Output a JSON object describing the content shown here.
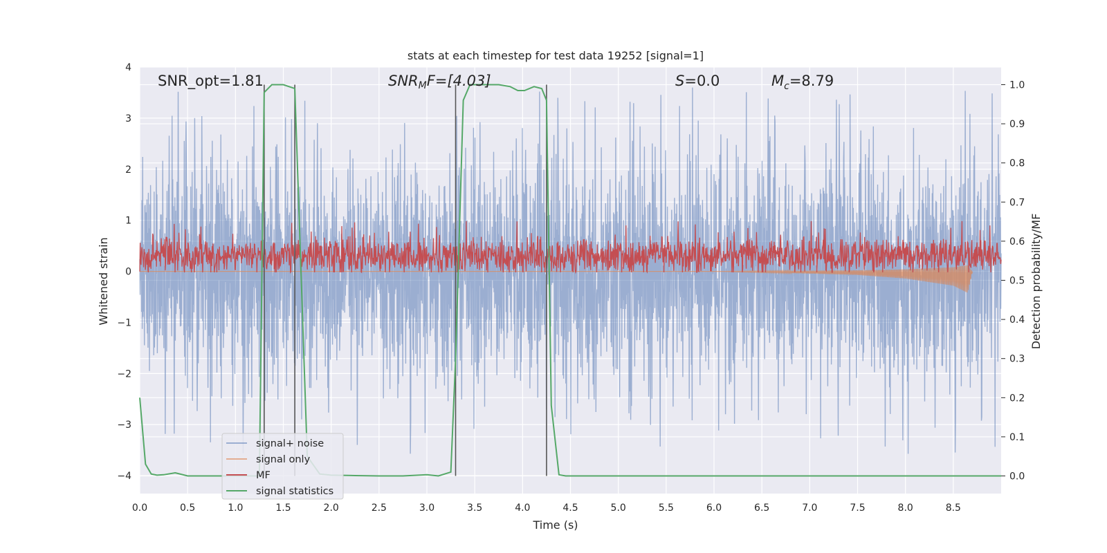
{
  "chart_data": {
    "type": "line",
    "title": "stats at each timestep for test data 19252 [signal=1]",
    "xlabel": "Time (s)",
    "ylabel_left": "Whitened strain",
    "ylabel_right": "Detection probability/MF",
    "xlim": [
      0.0,
      9.0
    ],
    "ylim_left": [
      -4.35,
      4.0
    ],
    "ylim_right": [
      -0.045,
      1.045
    ],
    "x_ticks": [
      "0.0",
      "0.5",
      "1.0",
      "1.5",
      "2.0",
      "2.5",
      "3.0",
      "3.5",
      "4.0",
      "4.5",
      "5.0",
      "5.5",
      "6.0",
      "6.5",
      "7.0",
      "7.5",
      "8.0",
      "8.5"
    ],
    "y_ticks_left": [
      "4",
      "3",
      "2",
      "1",
      "0",
      "−1",
      "−2",
      "−3",
      "−4"
    ],
    "y_ticks_right": [
      "1.0",
      "0.9",
      "0.8",
      "0.7",
      "0.6",
      "0.5",
      "0.4",
      "0.3",
      "0.2",
      "0.1",
      "0.0"
    ],
    "grid": true,
    "legend_position": "lower-left",
    "annotations": {
      "snr_opt": "SNR_opt=1.81",
      "snr_mf_label": "SNR",
      "snr_mf_sub": "M",
      "snr_mf_rest": "F=[4.03]",
      "s_label": "S",
      "s_value": "=0.0",
      "mc_label": "M",
      "mc_sub": "c",
      "mc_value": "=8.79"
    },
    "colors": {
      "signal_noise": "#4c72b0",
      "signal_only": "#dd8452",
      "mf": "#c44e52",
      "signal_statistics": "#55a868",
      "background": "#eaeaf2"
    },
    "series": [
      {
        "name": "signal+ noise",
        "axis": "left",
        "style": "dense noise, amplitude approx ±1.3 typical, peaks up to ±3.5"
      },
      {
        "name": "signal only",
        "axis": "left",
        "x": [
          0.0,
          5.0,
          6.0,
          7.0,
          7.5,
          8.0,
          8.5,
          8.65,
          8.7
        ],
        "y": [
          0.0,
          0.0,
          0.0,
          -0.03,
          -0.05,
          -0.1,
          -0.2,
          -0.3,
          0.0
        ]
      },
      {
        "name": "MF",
        "axis": "left",
        "style": "positive noise band roughly 0.0 to 0.7, peaks near 1.0"
      },
      {
        "name": "signal statistics",
        "axis": "right",
        "x": [
          0.0,
          0.06,
          0.12,
          0.18,
          0.25,
          0.37,
          0.5,
          0.75,
          1.0,
          1.12,
          1.25,
          1.3,
          1.38,
          1.5,
          1.62,
          1.75,
          1.88,
          2.0,
          2.25,
          2.5,
          2.75,
          3.0,
          3.12,
          3.25,
          3.3,
          3.38,
          3.45,
          3.5,
          3.75,
          3.87,
          3.95,
          4.02,
          4.12,
          4.2,
          4.25,
          4.3,
          4.38,
          4.45,
          4.5,
          5.0,
          9.0
        ],
        "y": [
          0.2,
          0.03,
          0.005,
          0.002,
          0.003,
          0.008,
          0.0,
          0.0,
          0.0,
          0.0,
          0.0,
          0.98,
          1.0,
          1.0,
          0.99,
          0.05,
          0.005,
          0.002,
          0.001,
          0.0,
          0.0,
          0.003,
          0.0,
          0.01,
          0.3,
          0.96,
          1.0,
          1.0,
          1.0,
          0.995,
          0.985,
          0.985,
          0.995,
          0.99,
          0.96,
          0.18,
          0.003,
          0.0,
          0.0,
          0.0,
          0.0
        ]
      }
    ],
    "vertical_markers": [
      1.3,
      1.62,
      3.3,
      4.25
    ],
    "legend": [
      "signal+ noise",
      "signal only",
      "MF",
      "signal statistics"
    ]
  }
}
